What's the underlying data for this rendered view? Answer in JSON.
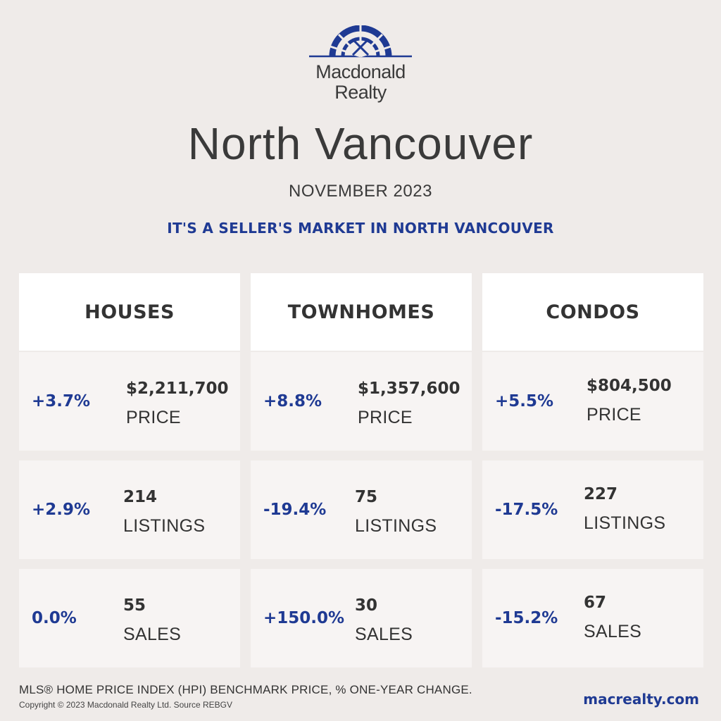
{
  "brand": {
    "name_line1": "Macdonald",
    "name_line2": "Realty",
    "accent_color": "#1f3a93"
  },
  "title": "North Vancouver",
  "month": "NOVEMBER 2023",
  "headline": "IT'S A SELLER'S MARKET IN NORTH VANCOUVER",
  "columns": [
    {
      "header": "HOUSES",
      "rows": [
        {
          "change": "+3.7%",
          "value": "$2,211,700",
          "label": "PRICE"
        },
        {
          "change": "+2.9%",
          "value": "214",
          "label": "LISTINGS"
        },
        {
          "change": "0.0%",
          "value": "55",
          "label": "SALES"
        }
      ]
    },
    {
      "header": "TOWNHOMES",
      "rows": [
        {
          "change": "+8.8%",
          "value": "$1,357,600",
          "label": "PRICE"
        },
        {
          "change": "-19.4%",
          "value": "75",
          "label": "LISTINGS"
        },
        {
          "change": "+150.0%",
          "value": "30",
          "label": "SALES"
        }
      ]
    },
    {
      "header": "CONDOS",
      "rows": [
        {
          "change": "+5.5%",
          "value": "$804,500",
          "label": "PRICE"
        },
        {
          "change": "-17.5%",
          "value": "227",
          "label": "LISTINGS"
        },
        {
          "change": "-15.2%",
          "value": "67",
          "label": "SALES"
        }
      ]
    }
  ],
  "footer": {
    "note": "MLS® HOME PRICE INDEX (HPI) BENCHMARK PRICE, % ONE-YEAR CHANGE.",
    "copyright": "Copyright © 2023 Macdonald Realty Ltd. Source REBGV",
    "website": "macrealty.com"
  }
}
